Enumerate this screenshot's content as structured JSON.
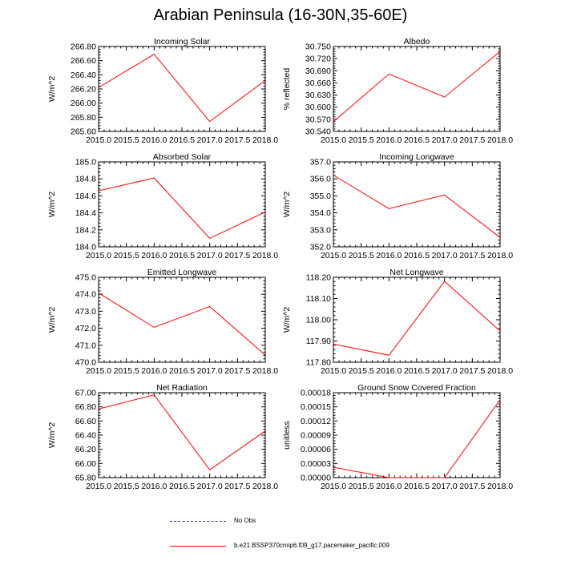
{
  "figure": {
    "title": "Arabian Peninsula (16-30N,35-60E)"
  },
  "legend": {
    "items": [
      {
        "label": "No Obs",
        "style": "dashed",
        "color": "#3a3aa8"
      },
      {
        "label": "b.e21.BSSP370cmip6.f09_g17.pacemaker_pacific.009",
        "style": "solid",
        "color": "#ff0000"
      }
    ]
  },
  "chart_data": [
    {
      "type": "line",
      "title": "Incoming Solar",
      "ylabel": "W/m^2",
      "x": [
        2015,
        2016,
        2017,
        2018
      ],
      "xlim": [
        2015,
        2018
      ],
      "xticks": [
        "2015.0",
        "2015.5",
        "2016.0",
        "2016.5",
        "2017.0",
        "2017.5",
        "2018.0"
      ],
      "ylim": [
        265.6,
        266.8
      ],
      "yticks": [
        "265.60",
        "265.80",
        "266.00",
        "266.20",
        "266.40",
        "266.60",
        "266.80"
      ],
      "series": [
        {
          "values": [
            266.22,
            266.69,
            265.74,
            266.32
          ],
          "color": "#ff0000"
        }
      ]
    },
    {
      "type": "line",
      "title": "Albedo",
      "ylabel": "% reflected",
      "x": [
        2015,
        2016,
        2017,
        2018
      ],
      "xlim": [
        2015,
        2018
      ],
      "xticks": [
        "2015.0",
        "2015.5",
        "2016.0",
        "2016.5",
        "2017.0",
        "2017.5",
        "2018.0"
      ],
      "ylim": [
        30.54,
        30.75
      ],
      "yticks": [
        "30.540",
        "30.570",
        "30.600",
        "30.630",
        "30.660",
        "30.690",
        "30.720",
        "30.750"
      ],
      "series": [
        {
          "values": [
            30.564,
            30.682,
            30.625,
            30.738
          ],
          "color": "#ff0000"
        }
      ]
    },
    {
      "type": "line",
      "title": "Absorbed Solar",
      "ylabel": "W/m^2",
      "x": [
        2015,
        2016,
        2017,
        2018
      ],
      "xlim": [
        2015,
        2018
      ],
      "xticks": [
        "2015.0",
        "2015.5",
        "2016.0",
        "2016.5",
        "2017.0",
        "2017.5",
        "2018.0"
      ],
      "ylim": [
        184.0,
        185.0
      ],
      "yticks": [
        "184.0",
        "184.2",
        "184.4",
        "184.6",
        "184.8",
        "185.0"
      ],
      "series": [
        {
          "values": [
            184.66,
            184.81,
            184.1,
            184.41
          ],
          "color": "#ff0000"
        }
      ]
    },
    {
      "type": "line",
      "title": "Incoming Longwave",
      "ylabel": "W/m^2",
      "x": [
        2015,
        2016,
        2017,
        2018
      ],
      "xlim": [
        2015,
        2018
      ],
      "xticks": [
        "2015.0",
        "2015.5",
        "2016.0",
        "2016.5",
        "2017.0",
        "2017.5",
        "2018.0"
      ],
      "ylim": [
        352.0,
        357.0
      ],
      "yticks": [
        "352.0",
        "353.0",
        "354.0",
        "355.0",
        "356.0",
        "357.0"
      ],
      "series": [
        {
          "values": [
            356.22,
            354.25,
            355.05,
            352.55
          ],
          "color": "#ff0000"
        }
      ]
    },
    {
      "type": "line",
      "title": "Emitted Longwave",
      "ylabel": "W/m^2",
      "x": [
        2015,
        2016,
        2017,
        2018
      ],
      "xlim": [
        2015,
        2018
      ],
      "xticks": [
        "2015.0",
        "2015.5",
        "2016.0",
        "2016.5",
        "2017.0",
        "2017.5",
        "2018.0"
      ],
      "ylim": [
        470.0,
        475.0
      ],
      "yticks": [
        "470.0",
        "471.0",
        "472.0",
        "473.0",
        "474.0",
        "475.0"
      ],
      "series": [
        {
          "values": [
            474.08,
            472.05,
            473.28,
            470.42
          ],
          "color": "#ff0000"
        }
      ]
    },
    {
      "type": "line",
      "title": "Net Longwave",
      "ylabel": "W/m^2",
      "x": [
        2015,
        2016,
        2017,
        2018
      ],
      "xlim": [
        2015,
        2018
      ],
      "xticks": [
        "2015.0",
        "2015.5",
        "2016.0",
        "2016.5",
        "2017.0",
        "2017.5",
        "2018.0"
      ],
      "ylim": [
        117.8,
        118.2
      ],
      "yticks": [
        "117.80",
        "117.90",
        "118.00",
        "118.10",
        "118.20"
      ],
      "series": [
        {
          "values": [
            117.886,
            117.833,
            118.181,
            117.947
          ],
          "color": "#ff0000"
        }
      ]
    },
    {
      "type": "line",
      "title": "Net Radiation",
      "ylabel": "W/m^2",
      "x": [
        2015,
        2016,
        2017,
        2018
      ],
      "xlim": [
        2015,
        2018
      ],
      "xticks": [
        "2015.0",
        "2015.5",
        "2016.0",
        "2016.5",
        "2017.0",
        "2017.5",
        "2018.0"
      ],
      "ylim": [
        65.8,
        67.0
      ],
      "yticks": [
        "65.80",
        "66.00",
        "66.20",
        "66.40",
        "66.60",
        "66.80",
        "67.00"
      ],
      "series": [
        {
          "values": [
            66.77,
            66.97,
            65.91,
            66.46
          ],
          "color": "#ff0000"
        }
      ]
    },
    {
      "type": "line",
      "title": "Ground Snow Covered Fraction",
      "ylabel": "unitless",
      "x": [
        2015,
        2016,
        2017,
        2018
      ],
      "xlim": [
        2015,
        2018
      ],
      "xticks": [
        "2015.0",
        "2015.5",
        "2016.0",
        "2016.5",
        "2017.0",
        "2017.5",
        "2018.0"
      ],
      "ylim": [
        0.0,
        0.00018
      ],
      "yticks": [
        "0.00000",
        "0.00003",
        "0.00006",
        "0.00009",
        "0.00012",
        "0.00015",
        "0.00018"
      ],
      "series": [
        {
          "values": [
            2.2e-05,
            0.0,
            0.0,
            0.000165
          ],
          "color": "#ff0000"
        }
      ]
    }
  ]
}
